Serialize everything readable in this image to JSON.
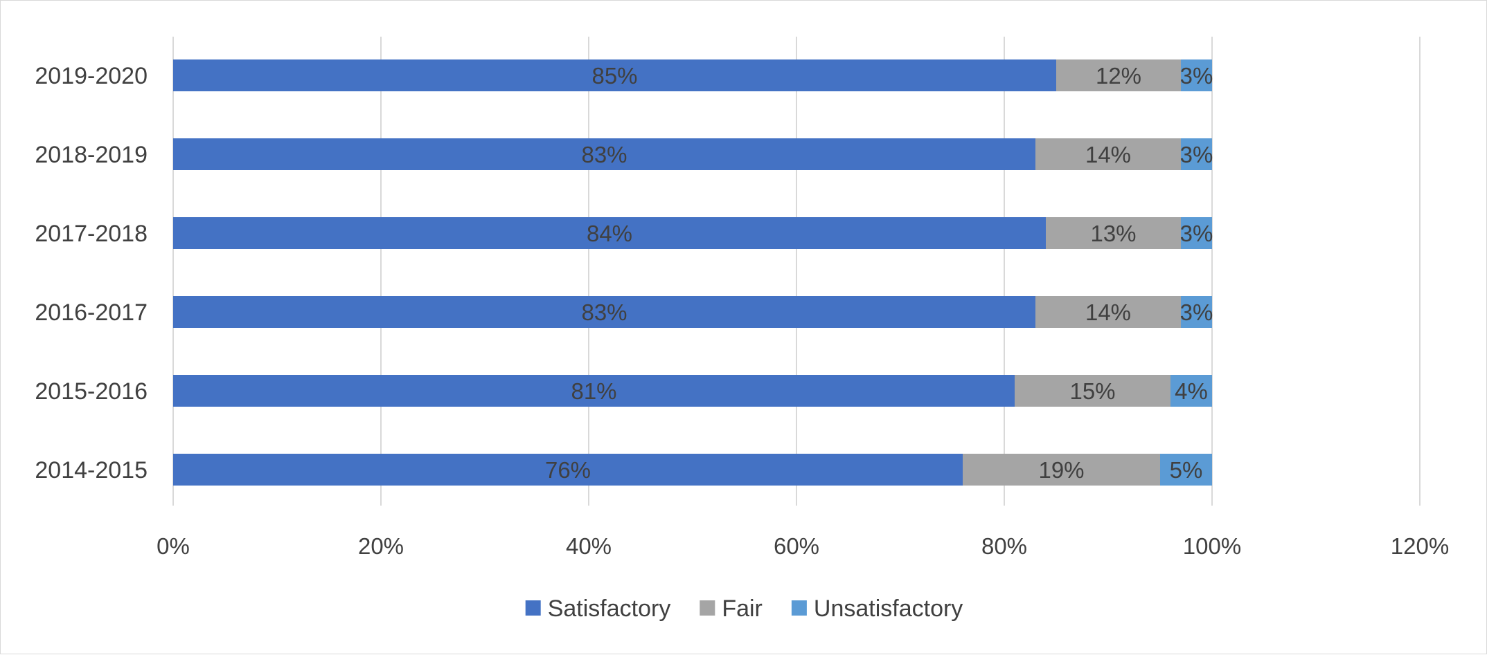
{
  "chart_data": {
    "type": "bar",
    "orientation": "horizontal",
    "stacked": true,
    "categories": [
      "2019-2020",
      "2018-2019",
      "2017-2018",
      "2016-2017",
      "2015-2016",
      "2014-2015"
    ],
    "series": [
      {
        "name": "Satisfactory",
        "color": "#4472C4",
        "values": [
          85,
          83,
          84,
          83,
          81,
          76
        ],
        "labels": [
          "85%",
          "83%",
          "84%",
          "83%",
          "81%",
          "76%"
        ]
      },
      {
        "name": "Fair",
        "color": "#A5A5A5",
        "values": [
          12,
          14,
          13,
          14,
          15,
          19
        ],
        "labels": [
          "12%",
          "14%",
          "13%",
          "14%",
          "15%",
          "19%"
        ]
      },
      {
        "name": "Unsatisfactory",
        "color": "#5B9BD5",
        "values": [
          3,
          3,
          3,
          3,
          4,
          5
        ],
        "labels": [
          "3%",
          "3%",
          "3%",
          "3%",
          "4%",
          "5%"
        ]
      }
    ],
    "xlim": [
      0,
      120
    ],
    "x_ticks": [
      0,
      20,
      40,
      60,
      80,
      100,
      120
    ],
    "x_tick_labels": [
      "0%",
      "20%",
      "40%",
      "60%",
      "80%",
      "100%",
      "120%"
    ],
    "grid": true,
    "legend_position": "bottom"
  }
}
